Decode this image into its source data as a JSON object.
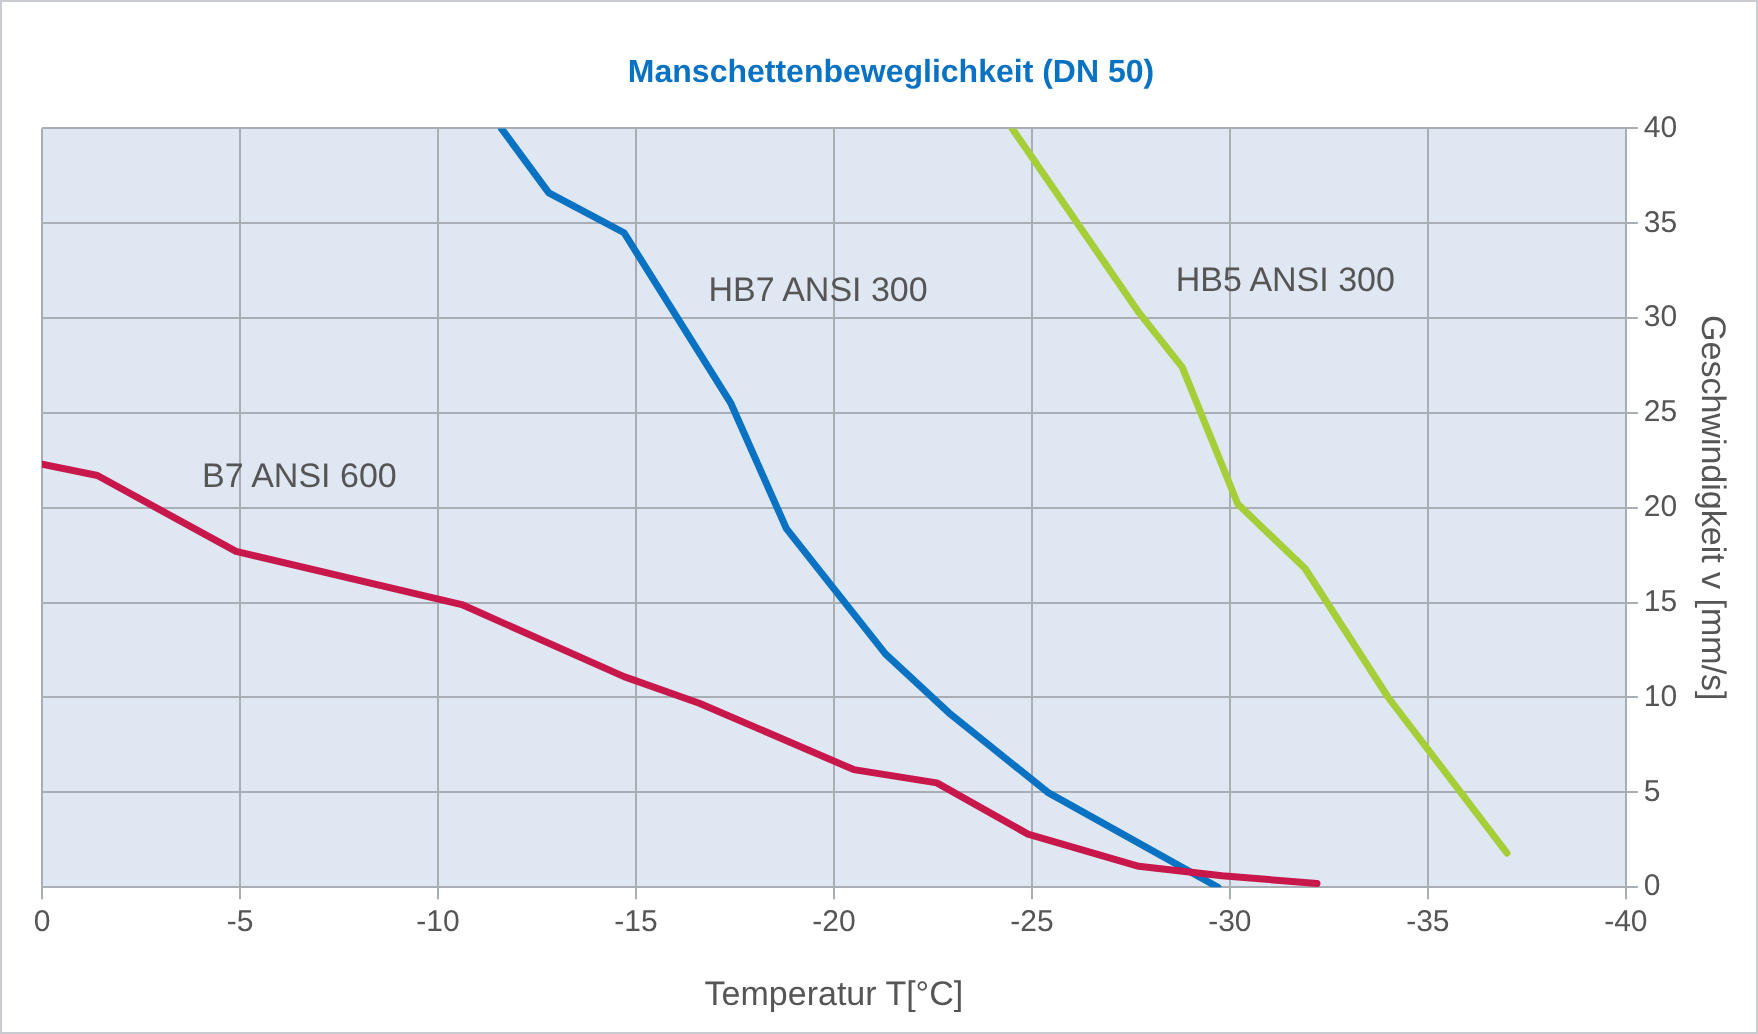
{
  "chart_data": {
    "type": "line",
    "title": "Manschettenbeweglichkeit (DN 50)",
    "xlabel": "Temperatur T[°C]",
    "ylabel": "Geschwindigkeit v [mm/s]",
    "xlim": [
      0,
      -40
    ],
    "xticks": [
      0,
      -5,
      -10,
      -15,
      -20,
      -25,
      -30,
      -35,
      -40
    ],
    "ylim": [
      0,
      40
    ],
    "yticks": [
      0,
      5,
      10,
      15,
      20,
      25,
      30,
      35,
      40
    ],
    "grid": true,
    "legend": false,
    "marker": "none",
    "line_style": "solid",
    "series": [
      {
        "name": "B7 ANSI 600",
        "color": "#c8174b",
        "x": [
          0,
          -1.4,
          -4.9,
          -10.6,
          -14.7,
          -16.6,
          -20.5,
          -22.6,
          -24.9,
          -27.7,
          -29.8,
          -32.2
        ],
        "values": [
          22.3,
          21.7,
          17.7,
          14.9,
          11.1,
          9.7,
          6.2,
          5.5,
          2.8,
          1.1,
          0.6,
          0.2
        ]
      },
      {
        "name": "HB7 ANSI 300",
        "color": "#0a72c2",
        "x": [
          -11.6,
          -12.8,
          -14.7,
          -17.4,
          -18.8,
          -21.3,
          -22.9,
          -25.4,
          -29.7
        ],
        "values": [
          40,
          36.6,
          34.5,
          25.5,
          18.9,
          12.3,
          9.2,
          5,
          0
        ]
      },
      {
        "name": "HB5 ANSI 300",
        "color": "#a6ce39",
        "x": [
          -24.5,
          -27.7,
          -28.8,
          -30.2,
          -31.9,
          -34,
          -37
        ],
        "values": [
          40,
          30.3,
          27.4,
          20.2,
          16.8,
          10,
          1.8
        ]
      }
    ]
  }
}
